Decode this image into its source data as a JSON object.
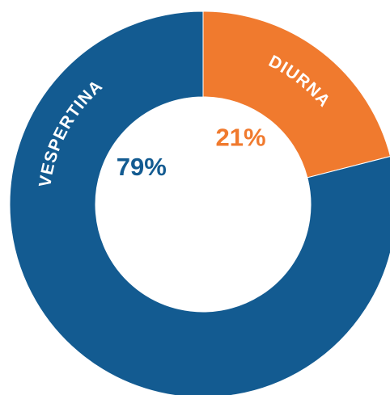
{
  "chart_data": {
    "type": "donut",
    "categories": [
      "DIURNA",
      "VESPERTINA"
    ],
    "values": [
      21,
      79
    ],
    "value_labels": [
      "21%",
      "79%"
    ],
    "colors": [
      "#f07a2e",
      "#135b91"
    ]
  }
}
